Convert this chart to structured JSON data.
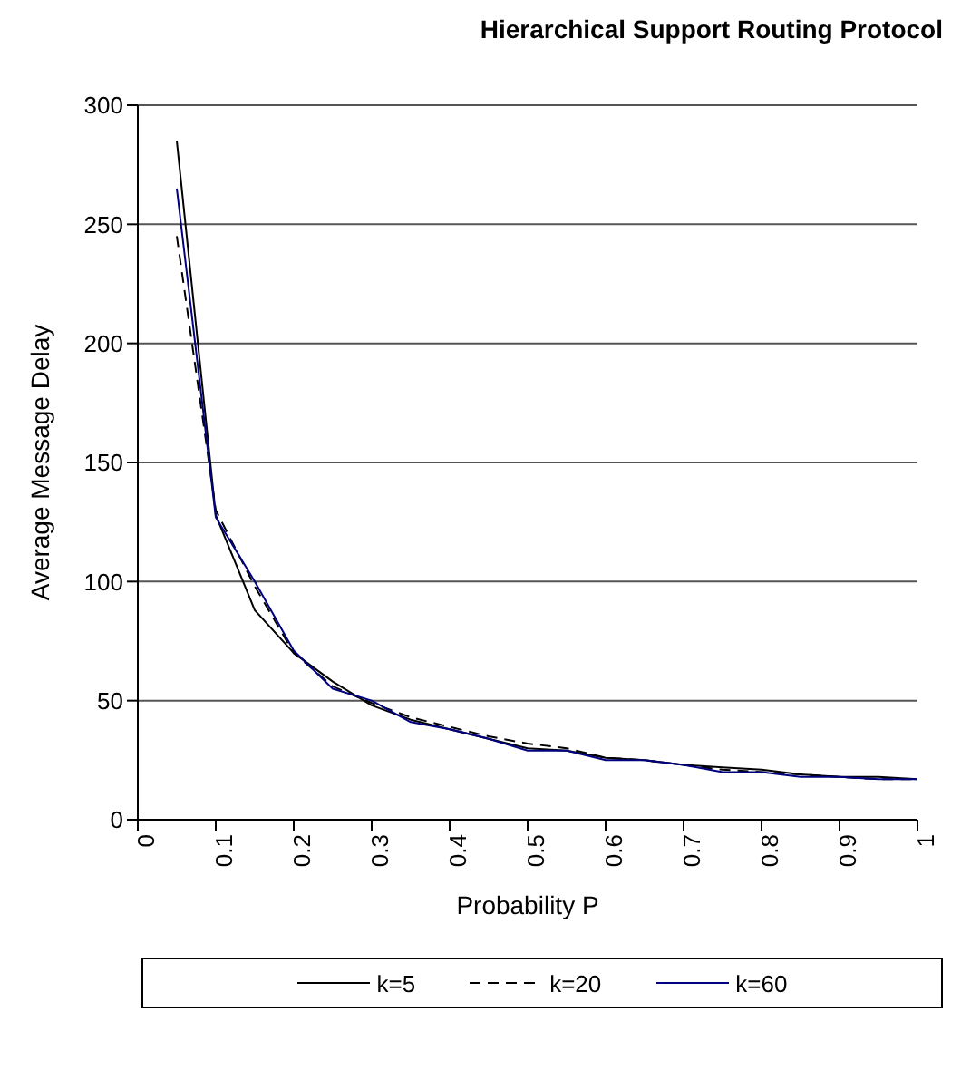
{
  "chart_data": {
    "type": "line",
    "title": "Hierarchical Support Routing Protocol",
    "xlabel": "Probability P",
    "ylabel": "Average Message Delay",
    "x": [
      0.05,
      0.1,
      0.15,
      0.2,
      0.25,
      0.3,
      0.35,
      0.4,
      0.45,
      0.5,
      0.55,
      0.6,
      0.65,
      0.7,
      0.75,
      0.8,
      0.85,
      0.9,
      0.95,
      1.0
    ],
    "series": [
      {
        "name": "k=5",
        "color": "#000000",
        "line_style": "solid",
        "values": [
          285,
          128,
          88,
          70,
          58,
          48,
          42,
          38,
          34,
          30,
          29,
          26,
          25,
          23,
          22,
          21,
          19,
          18,
          18,
          17
        ]
      },
      {
        "name": "k=20",
        "color": "#000000",
        "line_style": "dashed",
        "values": [
          245,
          130,
          98,
          70,
          56,
          49,
          43,
          39,
          35,
          32,
          30,
          26,
          25,
          23,
          21,
          20,
          19,
          18,
          17,
          17
        ]
      },
      {
        "name": "k=60",
        "color": "#000080",
        "line_style": "solid",
        "values": [
          265,
          127,
          100,
          71,
          55,
          50,
          41,
          38,
          34,
          29,
          29,
          25,
          25,
          23,
          20,
          20,
          18,
          18,
          17,
          17
        ]
      }
    ],
    "xlim": [
      0,
      1
    ],
    "xticks": [
      0,
      0.1,
      0.2,
      0.3,
      0.4,
      0.5,
      0.6,
      0.7,
      0.8,
      0.9,
      1
    ],
    "ylim": [
      0,
      300
    ],
    "yticks": [
      0,
      50,
      100,
      150,
      200,
      250,
      300
    ],
    "grid": "y",
    "legend": "bottom",
    "marker": "none"
  }
}
